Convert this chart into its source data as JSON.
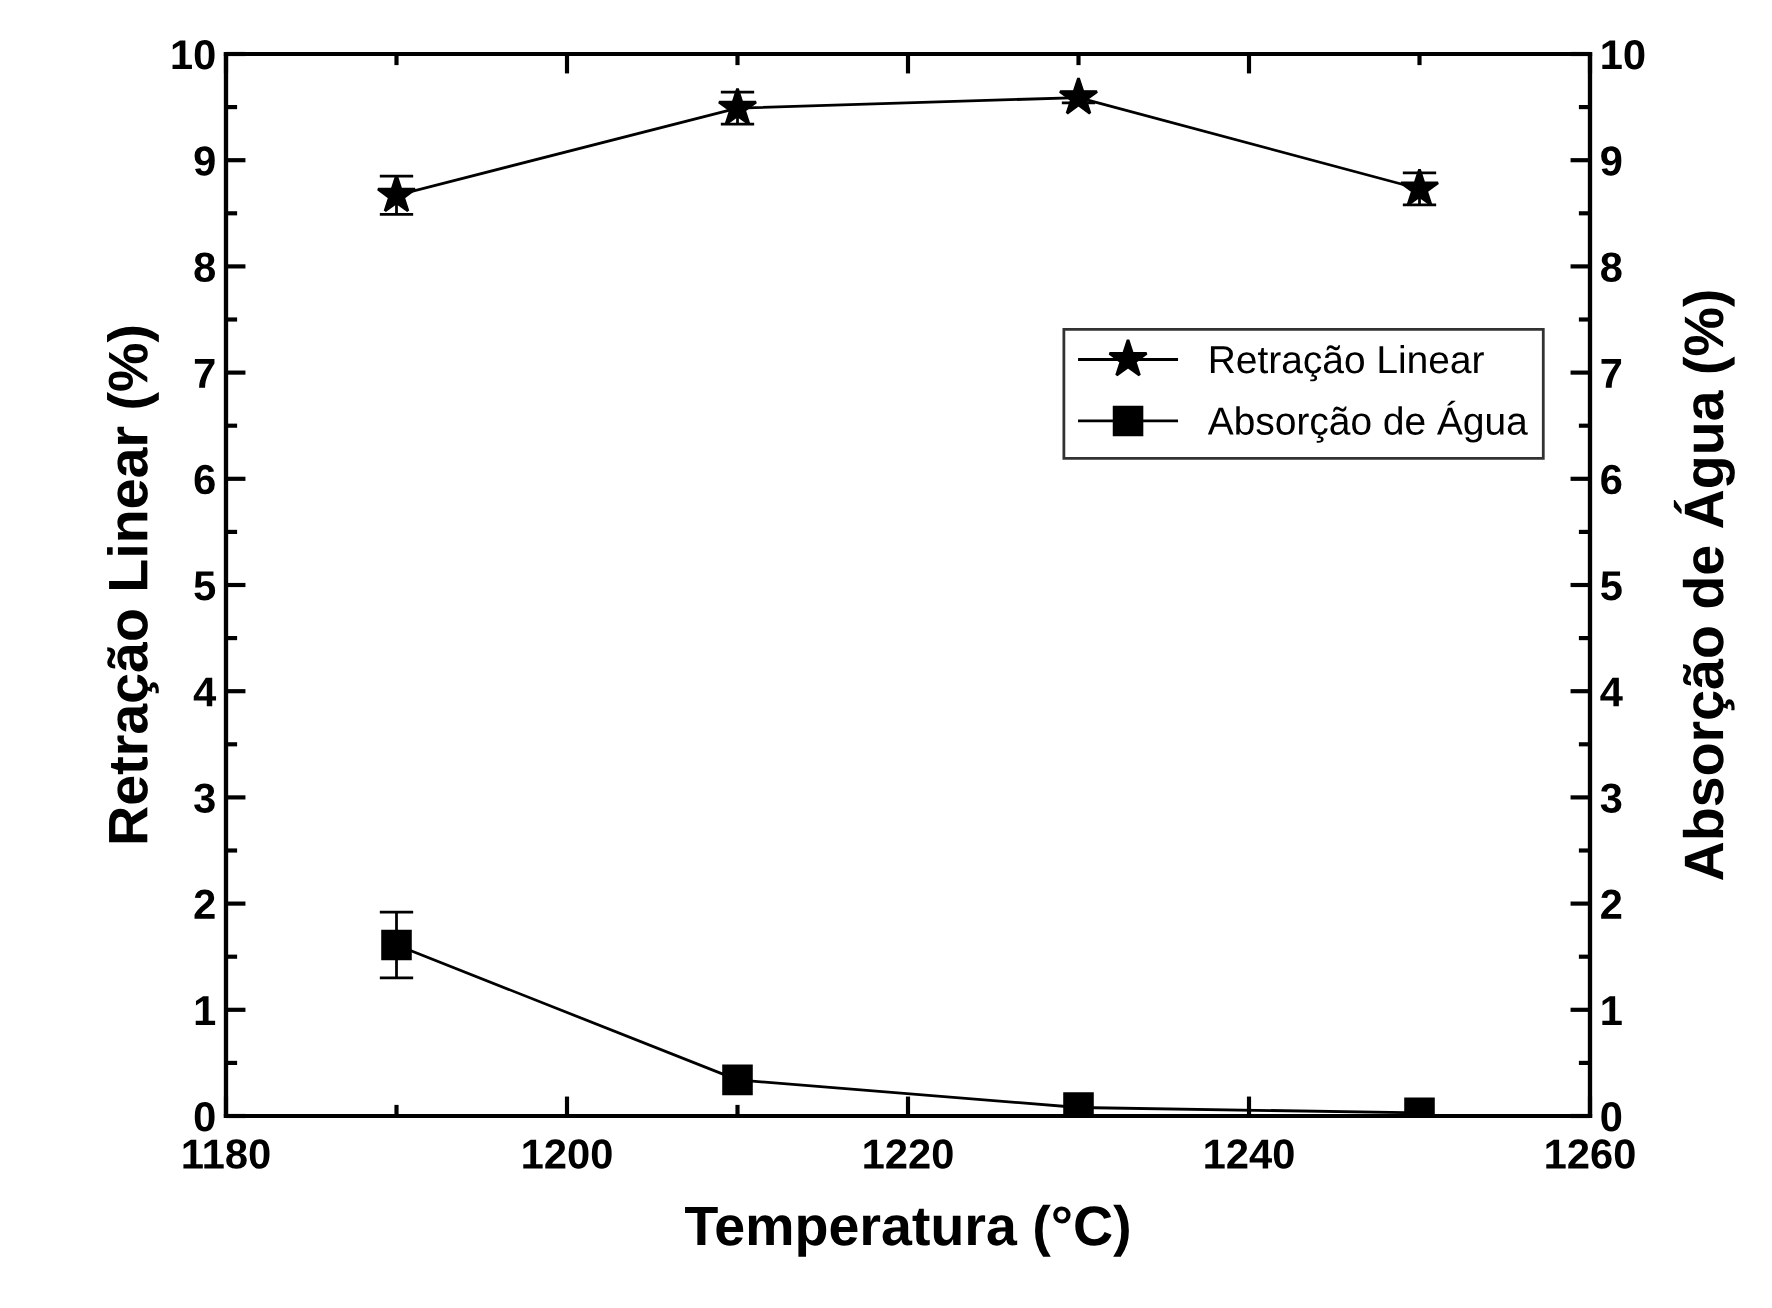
{
  "chart_data": {
    "type": "line",
    "xlabel": "Temperatura (°C)",
    "ylabel": "Retração Linear (%)",
    "y2label": "Absorção de Água (%)",
    "x": [
      1190,
      1210,
      1230,
      1250
    ],
    "series": [
      {
        "name": "Retração Linear",
        "color": "#000000",
        "marker": "star",
        "values": [
          8.67,
          9.49,
          9.59,
          8.73
        ],
        "errors": [
          0.18,
          0.15,
          0.05,
          0.15
        ]
      },
      {
        "name": "Absorção de Água",
        "color": "#000000",
        "marker": "square",
        "values": [
          1.61,
          0.34,
          0.08,
          0.03
        ],
        "errors": [
          0.31,
          null,
          null,
          null
        ]
      }
    ],
    "xlim": [
      1180,
      1260
    ],
    "xticks": [
      1180,
      1200,
      1220,
      1240,
      1260
    ],
    "ylim": [
      0,
      10
    ],
    "yticks": [
      0,
      1,
      2,
      3,
      4,
      5,
      6,
      7,
      8,
      9,
      10
    ],
    "y2lim": [
      0,
      10
    ],
    "y2ticks": [
      0,
      1,
      2,
      3,
      4,
      5,
      6,
      7,
      8,
      9,
      10
    ],
    "grid": false,
    "legend": "right",
    "line_style": "solid"
  }
}
